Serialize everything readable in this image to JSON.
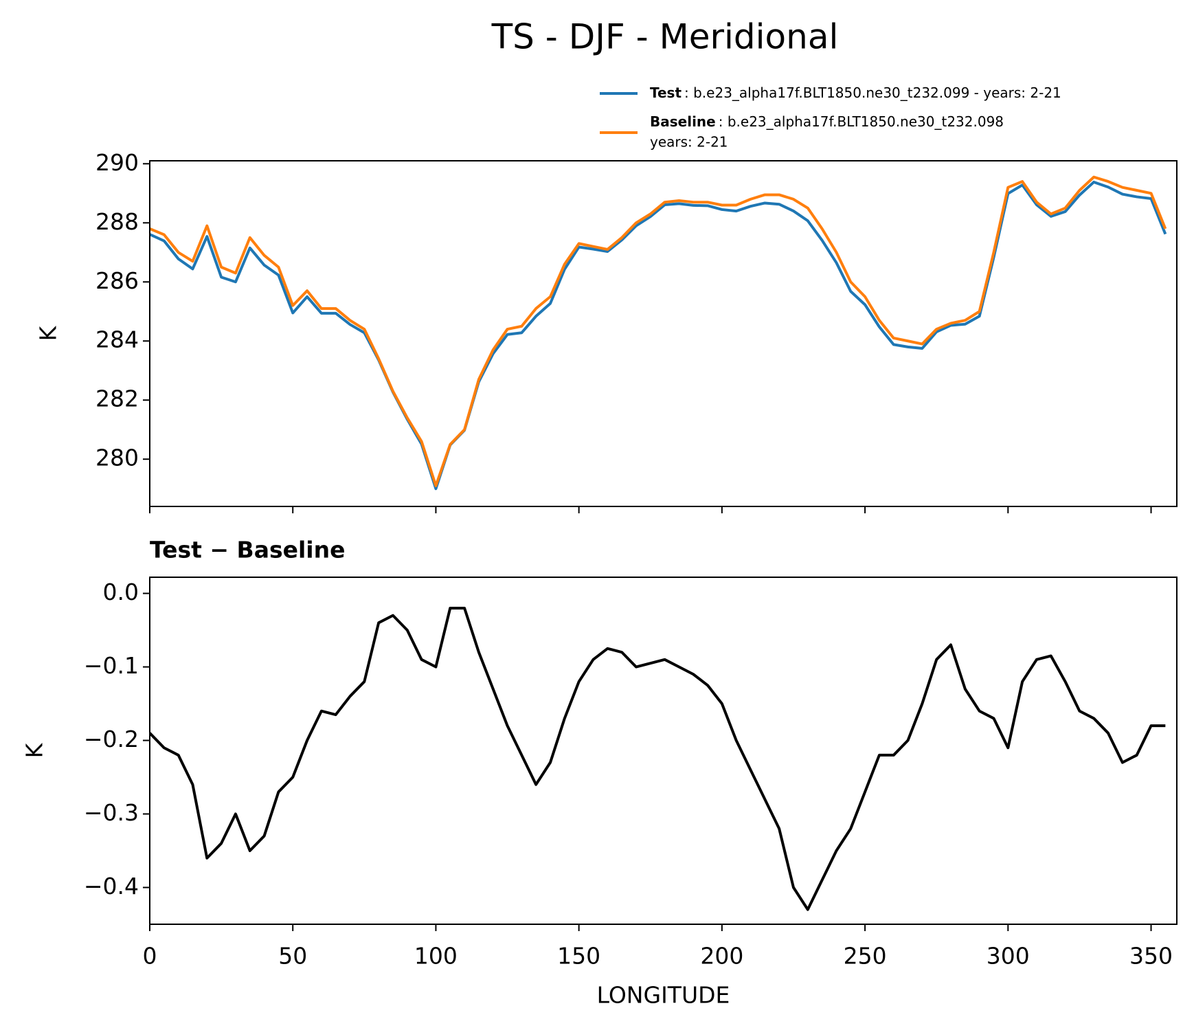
{
  "title": "TS - DJF - Meridional",
  "chart_data": [
    {
      "type": "line",
      "x": [
        0,
        5,
        10,
        15,
        20,
        25,
        30,
        35,
        40,
        45,
        50,
        55,
        60,
        65,
        70,
        75,
        80,
        85,
        90,
        95,
        100,
        105,
        110,
        115,
        120,
        125,
        130,
        135,
        140,
        145,
        150,
        155,
        160,
        165,
        170,
        175,
        180,
        185,
        190,
        195,
        200,
        205,
        210,
        215,
        220,
        225,
        230,
        235,
        240,
        245,
        250,
        255,
        260,
        265,
        270,
        275,
        280,
        285,
        290,
        295,
        300,
        305,
        310,
        315,
        320,
        325,
        330,
        335,
        340,
        345,
        350,
        355
      ],
      "series": [
        {
          "name": "Test",
          "description": ": b.e23_alpha17f.BLT1850.ne30_t232.099 - years: 2-21",
          "color": "#1f77b4",
          "values": [
            287.61,
            287.39,
            286.78,
            286.44,
            287.54,
            286.16,
            286.0,
            287.15,
            286.57,
            286.23,
            284.95,
            285.5,
            284.94,
            284.94,
            284.56,
            284.28,
            283.36,
            282.27,
            281.35,
            280.51,
            279.0,
            280.48,
            280.98,
            282.62,
            283.57,
            284.22,
            284.28,
            284.84,
            285.27,
            286.43,
            287.18,
            287.11,
            287.03,
            287.42,
            287.9,
            288.21,
            288.61,
            288.65,
            288.59,
            288.58,
            288.45,
            288.4,
            288.56,
            288.67,
            288.63,
            288.4,
            288.07,
            287.41,
            286.65,
            285.68,
            285.23,
            284.48,
            283.88,
            283.8,
            283.75,
            284.31,
            284.53,
            284.57,
            284.84,
            286.83,
            288.99,
            289.28,
            288.61,
            288.22,
            288.38,
            288.94,
            289.38,
            289.21,
            288.97,
            288.88,
            288.82,
            287.62
          ]
        },
        {
          "name": "Baseline",
          "description": [
            ": b.e23_alpha17f.BLT1850.ne30_t232.098",
            "years: 2-21"
          ],
          "color": "#ff7f0e",
          "values": [
            287.8,
            287.6,
            287.0,
            286.7,
            287.9,
            286.5,
            286.3,
            287.5,
            286.9,
            286.5,
            285.2,
            285.7,
            285.1,
            285.1,
            284.7,
            284.4,
            283.4,
            282.3,
            281.4,
            280.6,
            279.1,
            280.5,
            281.0,
            282.7,
            283.7,
            284.4,
            284.5,
            285.1,
            285.5,
            286.6,
            287.3,
            287.2,
            287.1,
            287.5,
            288.0,
            288.3,
            288.7,
            288.75,
            288.7,
            288.7,
            288.6,
            288.6,
            288.8,
            288.95,
            288.95,
            288.8,
            288.5,
            287.8,
            287.0,
            286.0,
            285.5,
            284.7,
            284.1,
            284.0,
            283.9,
            284.4,
            284.6,
            284.7,
            285.0,
            287.0,
            289.2,
            289.4,
            288.7,
            288.3,
            288.5,
            289.1,
            289.55,
            289.4,
            289.2,
            289.1,
            289.0,
            287.8
          ]
        }
      ],
      "ylabel": "K",
      "xlim": [
        0,
        359
      ],
      "xticks": [
        0,
        50,
        100,
        150,
        200,
        250,
        300,
        350
      ],
      "show_xtick_labels": false,
      "ylim": [
        278.4,
        290.1
      ],
      "yticks": [
        280,
        282,
        284,
        286,
        288,
        290
      ]
    },
    {
      "type": "line",
      "title": "Test − Baseline",
      "x": [
        0,
        5,
        10,
        15,
        20,
        25,
        30,
        35,
        40,
        45,
        50,
        55,
        60,
        65,
        70,
        75,
        80,
        85,
        90,
        95,
        100,
        105,
        110,
        115,
        120,
        125,
        130,
        135,
        140,
        145,
        150,
        155,
        160,
        165,
        170,
        175,
        180,
        185,
        190,
        195,
        200,
        205,
        210,
        215,
        220,
        225,
        230,
        235,
        240,
        245,
        250,
        255,
        260,
        265,
        270,
        275,
        280,
        285,
        290,
        295,
        300,
        305,
        310,
        315,
        320,
        325,
        330,
        335,
        340,
        345,
        350,
        355
      ],
      "series": [
        {
          "color": "#000000",
          "values": [
            -0.19,
            -0.21,
            -0.22,
            -0.26,
            -0.36,
            -0.34,
            -0.3,
            -0.35,
            -0.33,
            -0.27,
            -0.25,
            -0.2,
            -0.16,
            -0.165,
            -0.14,
            -0.12,
            -0.04,
            -0.03,
            -0.05,
            -0.09,
            -0.1,
            -0.02,
            -0.02,
            -0.08,
            -0.13,
            -0.18,
            -0.22,
            -0.26,
            -0.23,
            -0.17,
            -0.12,
            -0.09,
            -0.075,
            -0.08,
            -0.1,
            -0.095,
            -0.09,
            -0.1,
            -0.11,
            -0.125,
            -0.15,
            -0.2,
            -0.24,
            -0.28,
            -0.32,
            -0.4,
            -0.43,
            -0.39,
            -0.35,
            -0.32,
            -0.27,
            -0.22,
            -0.22,
            -0.2,
            -0.15,
            -0.09,
            -0.07,
            -0.13,
            -0.16,
            -0.17,
            -0.21,
            -0.12,
            -0.09,
            -0.085,
            -0.12,
            -0.16,
            -0.17,
            -0.19,
            -0.23,
            -0.22,
            -0.18,
            -0.18
          ]
        }
      ],
      "xlabel": "LONGITUDE",
      "ylabel": "K",
      "xlim": [
        0,
        359
      ],
      "xticks": [
        0,
        50,
        100,
        150,
        200,
        250,
        300,
        350
      ],
      "show_xtick_labels": true,
      "ylim": [
        -0.45,
        0.022
      ],
      "yticks": [
        {
          "value": -0.4,
          "label": "−0.4"
        },
        {
          "value": -0.3,
          "label": "−0.3"
        },
        {
          "value": -0.2,
          "label": "−0.2"
        },
        {
          "value": -0.1,
          "label": "−0.1"
        },
        {
          "value": 0,
          "label": "0.0"
        }
      ]
    }
  ]
}
